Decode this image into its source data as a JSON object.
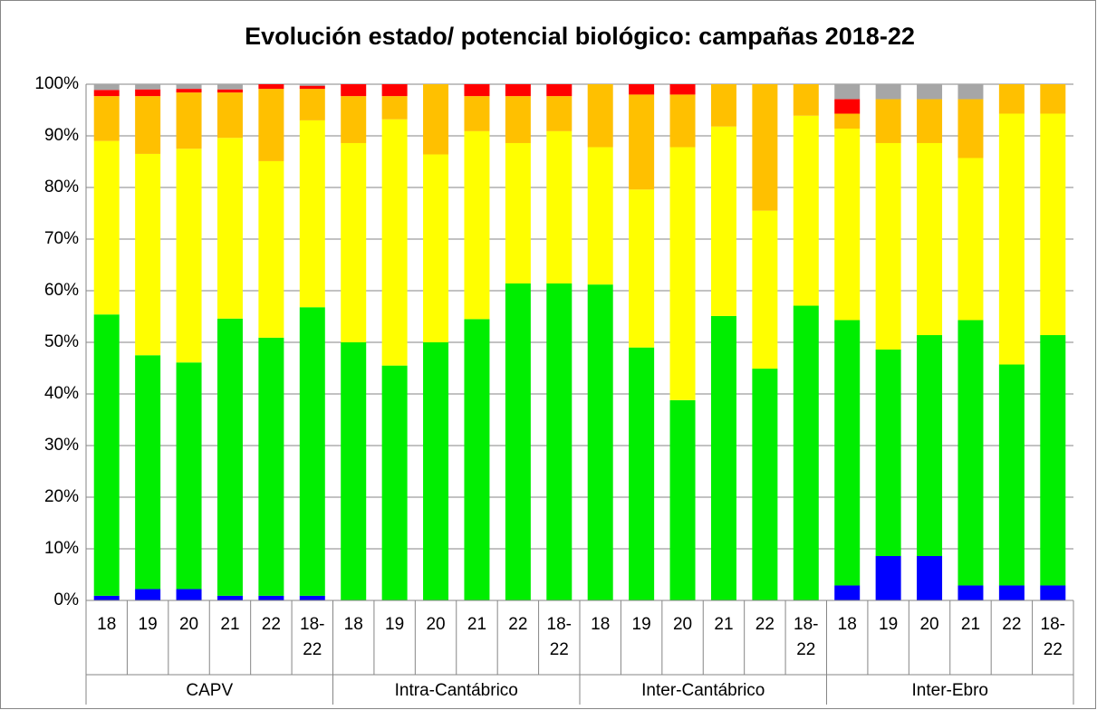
{
  "chart_data": {
    "type": "stacked_bar",
    "title": "Evolución estado/ potencial biológico: campañas 2018-22",
    "categories": [
      "18",
      "19",
      "20",
      "21",
      "22",
      "18-22",
      "18",
      "19",
      "20",
      "21",
      "22",
      "18-22",
      "18",
      "19",
      "20",
      "21",
      "22",
      "18-22",
      "18",
      "19",
      "20",
      "21",
      "22",
      "18-22"
    ],
    "groups": [
      "CAPV",
      "Intra-Cantábrico",
      "Inter-Cantábrico",
      "Inter-Ebro"
    ],
    "series": [
      {
        "color": "#0000ff",
        "values": [
          0.9,
          2.2,
          2.2,
          0.9,
          0.9,
          0.9,
          0,
          0,
          0,
          0,
          0,
          0,
          0,
          0,
          0,
          0,
          0,
          0,
          2.9,
          8.6,
          8.6,
          2.9,
          2.9,
          2.9
        ]
      },
      {
        "color": "#00ee00",
        "values": [
          54.5,
          45.3,
          43.9,
          53.7,
          50,
          55.9,
          50,
          45.5,
          50,
          54.5,
          61.4,
          61.4,
          61.2,
          49,
          38.8,
          55.1,
          44.9,
          57.1,
          51.4,
          40,
          42.8,
          51.4,
          42.8,
          48.5
        ]
      },
      {
        "color": "#ffff00",
        "values": [
          33.6,
          39,
          41.4,
          35,
          34.2,
          36.2,
          38.6,
          47.7,
          36.4,
          36.4,
          27.2,
          29.5,
          26.6,
          30.6,
          49,
          36.7,
          30.6,
          36.8,
          37.1,
          40,
          37.2,
          31.4,
          48.6,
          42.9
        ]
      },
      {
        "color": "#ffc000",
        "values": [
          8.7,
          11.2,
          10.9,
          8.8,
          14,
          6.1,
          9.1,
          4.5,
          13.6,
          6.8,
          9.1,
          6.8,
          12.2,
          18.4,
          10.2,
          8.2,
          24.5,
          6.1,
          2.9,
          8.5,
          8.5,
          11.4,
          5.7,
          5.7
        ]
      },
      {
        "color": "#ff0000",
        "values": [
          1.2,
          1.3,
          0.7,
          0.6,
          0.9,
          0.6,
          2.3,
          2.3,
          0,
          2.3,
          2.3,
          2.3,
          0,
          2,
          2,
          0,
          0,
          0,
          2.8,
          0,
          0,
          0,
          0,
          0
        ]
      },
      {
        "color": "#a6a6a6",
        "values": [
          1.1,
          1,
          0.9,
          1,
          0,
          0.3,
          0,
          0,
          0,
          0,
          0,
          0,
          0,
          0,
          0,
          0,
          0,
          0,
          2.9,
          2.9,
          2.9,
          2.9,
          0,
          0
        ]
      }
    ],
    "ylim": [
      0,
      100
    ],
    "yticks": [
      {
        "value": 0,
        "label": "0%"
      },
      {
        "value": 10,
        "label": "10%"
      },
      {
        "value": 20,
        "label": "20%"
      },
      {
        "value": 30,
        "label": "30%"
      },
      {
        "value": 40,
        "label": "40%"
      },
      {
        "value": 50,
        "label": "50%"
      },
      {
        "value": 60,
        "label": "60%"
      },
      {
        "value": 70,
        "label": "70%"
      },
      {
        "value": 80,
        "label": "80%"
      },
      {
        "value": 90,
        "label": "90%"
      },
      {
        "value": 100,
        "label": "100%"
      }
    ],
    "grid": true
  }
}
